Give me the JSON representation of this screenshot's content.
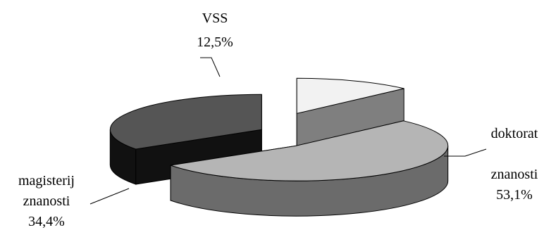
{
  "chart_data": {
    "type": "pie",
    "style": "3d-exploded",
    "title": "",
    "slices": [
      {
        "name_lines": [
          "VSS"
        ],
        "label": "12,5%",
        "value": 12.5,
        "top_color": "#f2f2f2",
        "side_color": "#7f7f7f"
      },
      {
        "name_lines": [
          "doktorat",
          "znanosti"
        ],
        "label": "53,1%",
        "value": 53.1,
        "top_color": "#b5b5b5",
        "side_color": "#6b6b6b"
      },
      {
        "name_lines": [
          "magisterij",
          "znanosti"
        ],
        "label": "34,4%",
        "value": 34.4,
        "top_color": "#555555",
        "side_color": "#111111"
      }
    ]
  }
}
